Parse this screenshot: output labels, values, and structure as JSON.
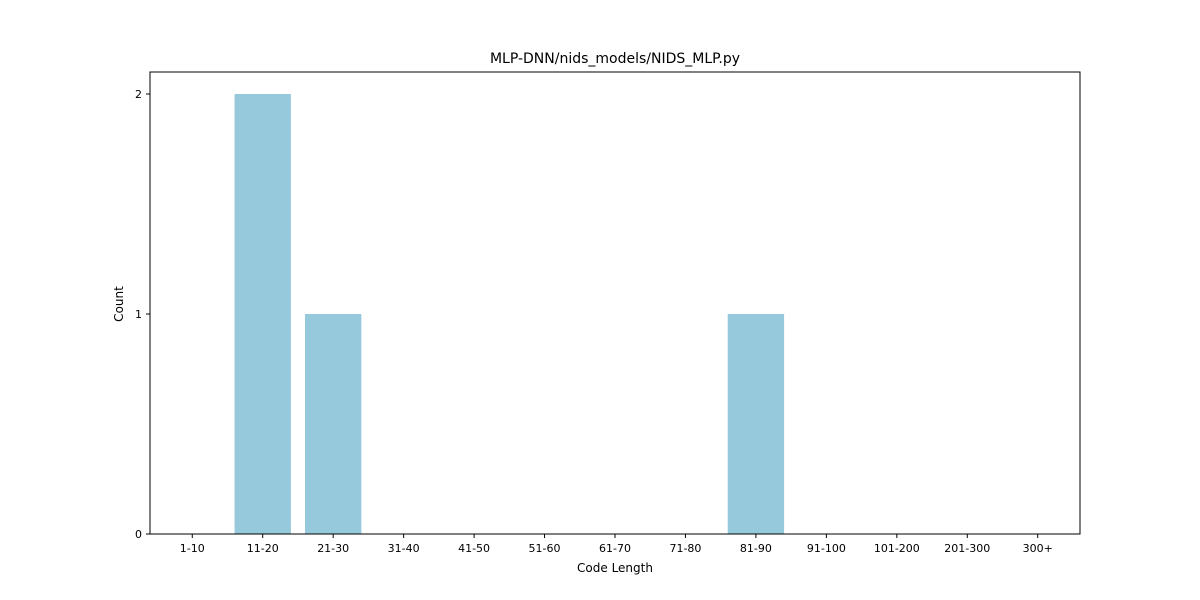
{
  "chart_data": {
    "type": "bar",
    "title": "MLP-DNN/nids_models/NIDS_MLP.py",
    "xlabel": "Code Length",
    "ylabel": "Count",
    "categories": [
      "1-10",
      "11-20",
      "21-30",
      "31-40",
      "41-50",
      "51-60",
      "61-70",
      "71-80",
      "81-90",
      "91-100",
      "101-200",
      "201-300",
      "300+"
    ],
    "values": [
      0,
      2,
      1,
      0,
      0,
      0,
      0,
      0,
      1,
      0,
      0,
      0,
      0
    ],
    "yticks": [
      0,
      1,
      2
    ],
    "ylim": [
      0,
      2.1
    ],
    "grid": false,
    "bar_color": "#96c9dc"
  }
}
